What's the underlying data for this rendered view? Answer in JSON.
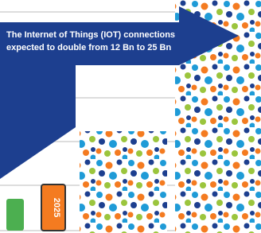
{
  "caption": {
    "line1": "The Internet of Things (IOT) connections",
    "line2": "expected to double from 12 Bn to 25 Bn"
  },
  "bars": [
    {
      "label": "2025"
    }
  ]
}
